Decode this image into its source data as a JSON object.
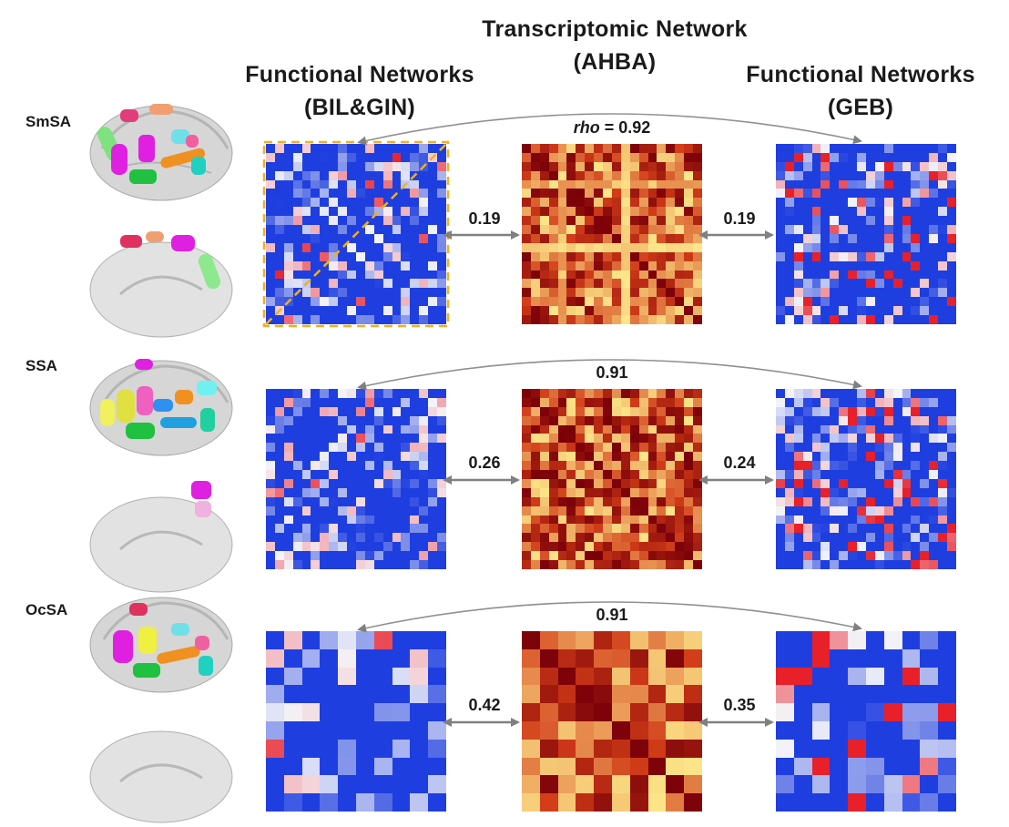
{
  "header": {
    "left_title_line1": "Functional Networks",
    "left_title_line2": "(BIL&GIN)",
    "center_title_line1": "Transcriptomic Network",
    "center_title_line2": "(AHBA)",
    "right_title_line1": "Functional Networks",
    "right_title_line2": "(GEB)"
  },
  "colors": {
    "blue_full": "#1f3ee0",
    "neutral": "#f4f4f8",
    "red_full": "#e8202a",
    "heat_dark": "#7a0008",
    "heat_mid": "#d23c18",
    "heat_light": "#fde68a",
    "arrow": "#808080",
    "dashed_box": "#f0b020"
  },
  "rows": [
    {
      "label": "SmSA",
      "top_value_prefix": "rho",
      "top_value": "= 0.92",
      "left_value": "0.19",
      "right_value": "0.19",
      "size": 20
    },
    {
      "label": "SSA",
      "top_value_prefix": "",
      "top_value": "0.91",
      "left_value": "0.26",
      "right_value": "0.24",
      "size": 20
    },
    {
      "label": "OcSA",
      "top_value_prefix": "",
      "top_value": "0.91",
      "left_value": "0.42",
      "right_value": "0.35",
      "size": 10
    }
  ]
}
